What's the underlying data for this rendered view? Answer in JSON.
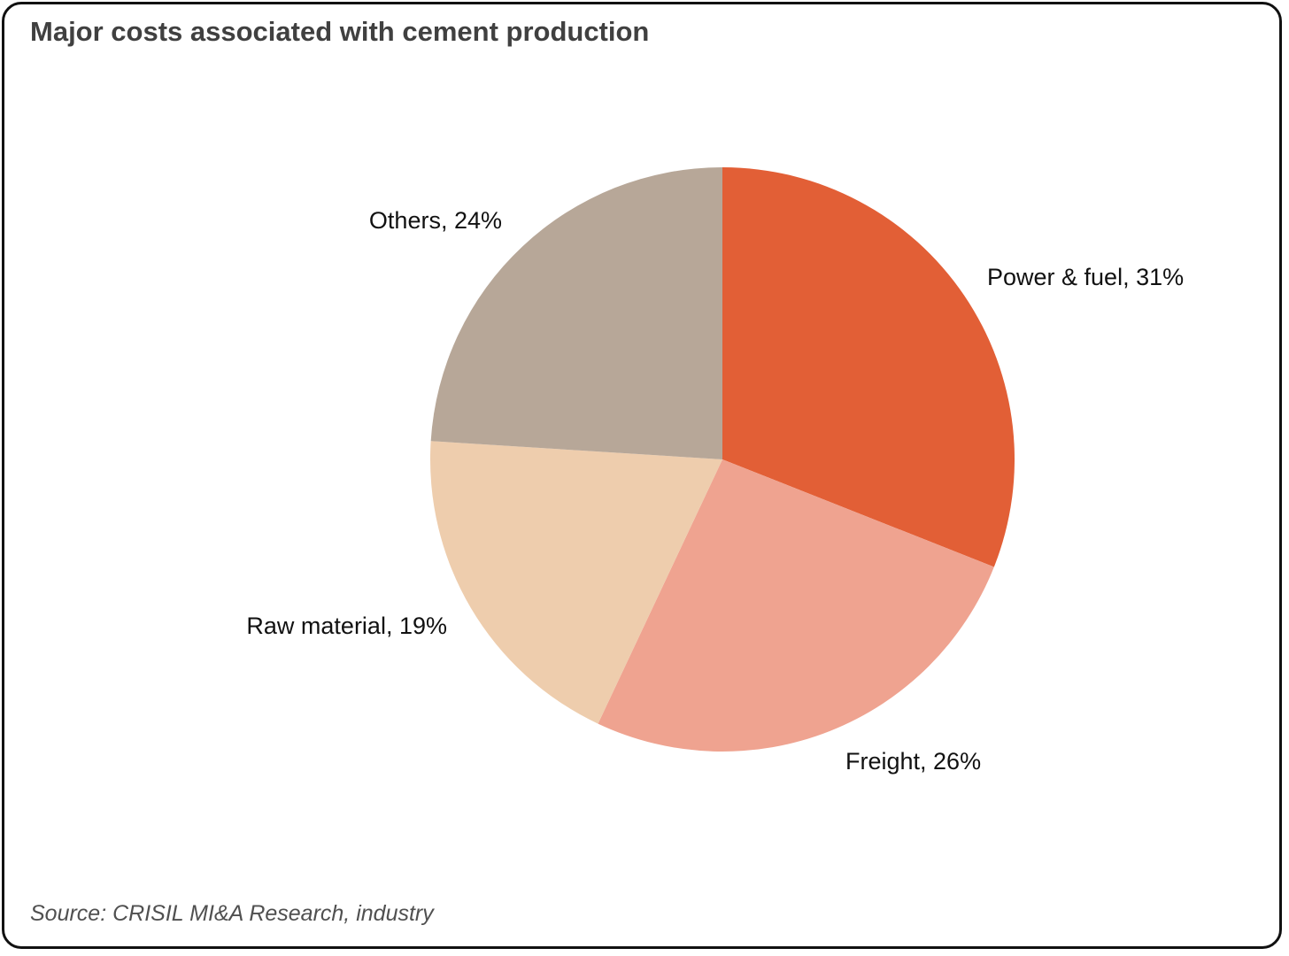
{
  "title": "Major costs associated with cement production",
  "source": "Source: CRISIL MI&A Research, industry",
  "chart_data": {
    "type": "pie",
    "title": "Major costs associated with cement production",
    "slices": [
      {
        "label": "Power & fuel",
        "value": 31,
        "text": "Power & fuel, 31%",
        "color": "#E25F36"
      },
      {
        "label": "Freight",
        "value": 26,
        "text": "Freight, 26%",
        "color": "#EFA390"
      },
      {
        "label": "Raw material",
        "value": 19,
        "text": "Raw material, 19%",
        "color": "#EECDAD"
      },
      {
        "label": "Others",
        "value": 24,
        "text": "Others, 24%",
        "color": "#B7A798"
      }
    ],
    "start_angle_deg": 0,
    "direction": "clockwise"
  }
}
